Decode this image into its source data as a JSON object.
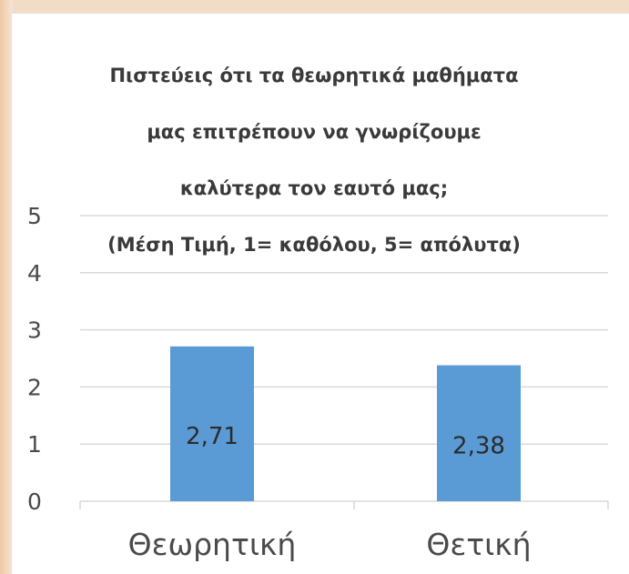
{
  "chart_data": {
    "type": "bar",
    "title_lines": [
      "Πιστεύεις ότι τα θεωρητικά μαθήματα",
      "μας επιτρέπουν να γνωρίζουμε",
      "καλύτερα τον εαυτό μας;",
      "(Μέση Τιμή, 1= καθόλου, 5= απόλυτα)"
    ],
    "categories": [
      "Θεωρητική",
      "Θετική"
    ],
    "values": [
      2.71,
      2.38
    ],
    "data_labels": [
      "2,71",
      "2,38"
    ],
    "y_ticks": [
      "0",
      "1",
      "2",
      "3",
      "4",
      "5"
    ],
    "ylim": [
      0,
      5
    ],
    "grid": true,
    "bar_color": "#5b9bd5",
    "grid_color": "#d9d9d9"
  }
}
